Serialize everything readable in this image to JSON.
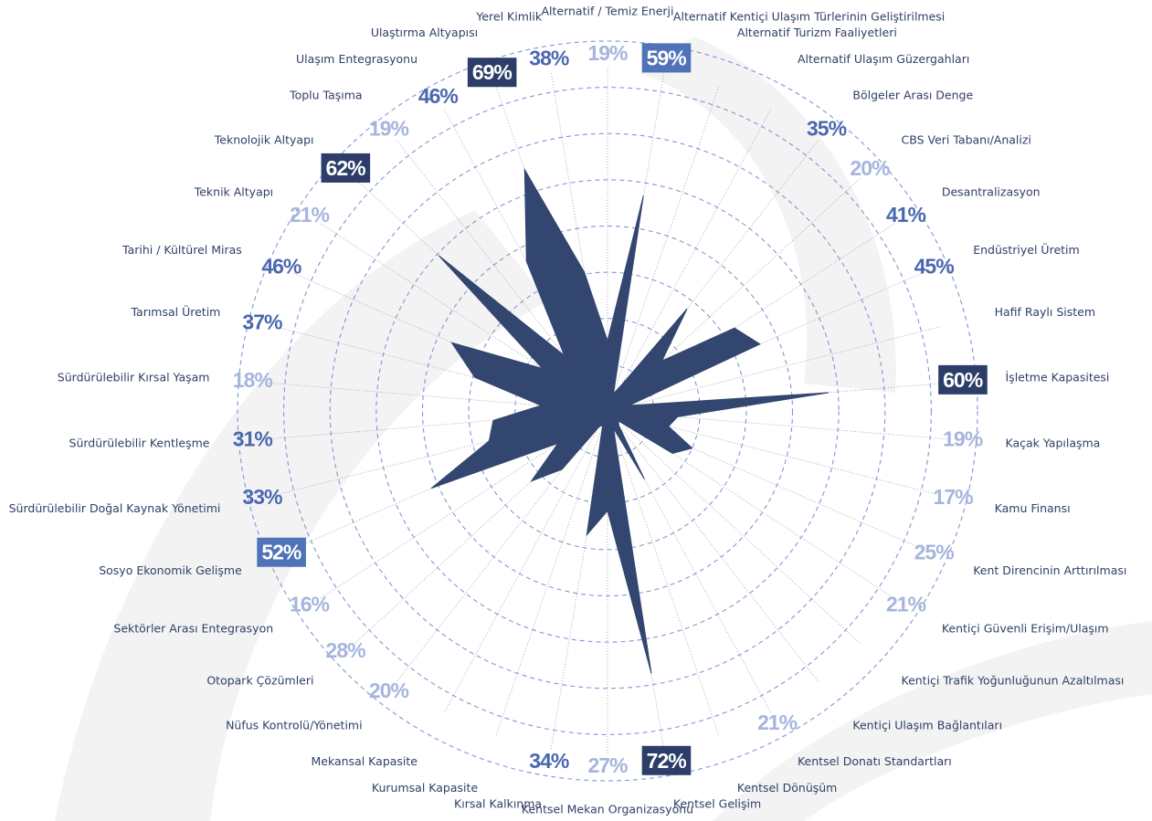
{
  "chart_data": {
    "type": "radar",
    "categories": [
      "Alternatif / Temiz Enerji",
      "Alternatif Kentiçi Ulaşım Türlerinin Geliştirilmesi",
      "Alternatif Turizm Faaliyetleri",
      "Alternatif Ulaşım Güzergahları",
      "Bölgeler Arası Denge",
      "CBS Veri Tabanı/Analizi",
      "Desantralizasyon",
      "Endüstriyel Üretim",
      "Hafif Raylı Sistem",
      "İşletme Kapasitesi",
      "Kaçak Yapılaşma",
      "Kamu Finansı",
      "Kent Direncinin Arttırılması",
      "Kentiçi Güvenli Erişim/Ulaşım",
      "Kentiçi Trafik Yoğunluğunun Azaltılması",
      "Kentiçi Ulaşım Bağlantıları",
      "Kentsel Donatı Standartları",
      "Kentsel Dönüşüm",
      "Kentsel Gelişim",
      "Kentsel Mekan Organizasyonu",
      "Kırsal Kalkınma",
      "Kurumsal Kapasite",
      "Mekansal Kapasite",
      "Nüfus Kontrolü/Yönetimi",
      "Otopark Çözümleri",
      "Sektörler Arası Entegrasyon",
      "Sosyo Ekonomik Gelişme",
      "Sürdürülebilir Doğal Kaynak Yönetimi",
      "Sürdürülebilir Kentleşme",
      "Sürdürülebilir Kırsal Yaşam",
      "Tarımsal Üretim",
      "Tarihi / Kültürel Miras",
      "Teknik Altyapı",
      "Teknolojik Altyapı",
      "Toplu Taşıma",
      "Ulaşım Entegrasyonu",
      "Ulaştırma Altyapısı",
      "Yerel Kimlik"
    ],
    "values": [
      19,
      59,
      5,
      8,
      35,
      20,
      41,
      45,
      6,
      60,
      19,
      17,
      25,
      21,
      4,
      5,
      21,
      5,
      72,
      27,
      34,
      4,
      5,
      20,
      28,
      16,
      52,
      33,
      31,
      18,
      37,
      46,
      21,
      62,
      19,
      46,
      69,
      38
    ],
    "value_labels": [
      "19%",
      "59%",
      null,
      null,
      "35%",
      "20%",
      "41%",
      "45%",
      null,
      "60%",
      "19%",
      "17%",
      "25%",
      "21%",
      null,
      null,
      "21%",
      null,
      "72%",
      "27%",
      "34%",
      null,
      null,
      "20%",
      "28%",
      "16%",
      "52%",
      "33%",
      "31%",
      "18%",
      "37%",
      "46%",
      "21%",
      "62%",
      "19%",
      "46%",
      "69%",
      "38%"
    ],
    "color": "#33466f",
    "rlim": [
      0,
      100
    ],
    "rticks": [
      12.5,
      25,
      37.5,
      50,
      62.5,
      75,
      87.5,
      100
    ],
    "grid": true
  }
}
